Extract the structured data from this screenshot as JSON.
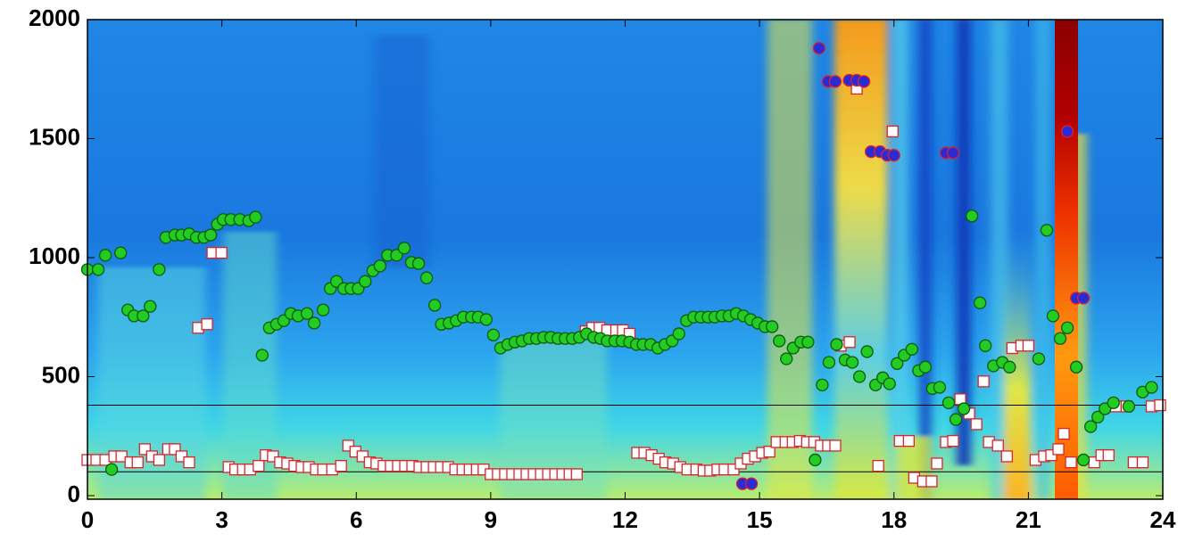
{
  "chart_data": {
    "type": "scatter",
    "xlim": [
      0,
      24
    ],
    "xticks": [
      0,
      3,
      6,
      9,
      12,
      15,
      18,
      21,
      24
    ],
    "ylim": [
      -15,
      2000
    ],
    "yticks": [
      0,
      500,
      1000,
      1500,
      2000
    ],
    "hlines": [
      380,
      100
    ],
    "series": [
      {
        "marker": "square",
        "color": "#ffffff",
        "edgecolor": "#e0202a",
        "x": [
          0,
          0.2,
          0.4,
          0.6,
          0.76,
          0.96,
          1.12,
          1.28,
          1.44,
          1.6,
          1.8,
          1.95,
          2.1,
          2.27,
          2.47,
          2.67,
          2.79,
          2.99,
          3.15,
          3.3,
          3.47,
          3.63,
          3.82,
          3.98,
          4.14,
          4.3,
          4.46,
          4.62,
          4.78,
          4.94,
          5.1,
          5.26,
          5.46,
          5.66,
          5.82,
          5.98,
          6.14,
          6.3,
          6.45,
          6.61,
          6.77,
          6.93,
          7.09,
          7.25,
          7.41,
          7.57,
          7.73,
          7.89,
          8.05,
          8.21,
          8.37,
          8.53,
          8.69,
          8.84,
          9.0,
          9.16,
          9.32,
          9.48,
          9.64,
          9.8,
          9.96,
          10.12,
          10.28,
          10.44,
          10.6,
          10.76,
          10.92,
          11.12,
          11.27,
          11.43,
          11.6,
          11.8,
          11.95,
          12.1,
          12.27,
          12.43,
          12.59,
          12.75,
          12.9,
          13.07,
          13.23,
          13.39,
          13.59,
          13.75,
          13.9,
          14.06,
          14.22,
          14.42,
          14.58,
          14.74,
          14.9,
          15.06,
          15.22,
          15.38,
          15.58,
          15.74,
          15.9,
          16.06,
          16.22,
          16.37,
          16.53,
          16.69,
          16.81,
          17.01,
          17.17,
          17.65,
          17.97,
          18.13,
          18.33,
          18.45,
          18.65,
          18.84,
          18.96,
          19.16,
          19.32,
          19.48,
          19.68,
          19.84,
          20.0,
          20.12,
          20.32,
          20.52,
          20.64,
          20.84,
          21.0,
          21.16,
          21.35,
          21.51,
          21.67,
          21.79,
          21.95,
          22.47,
          22.63,
          22.79,
          22.95,
          23.19,
          23.35,
          23.55,
          23.75,
          23.94
        ],
        "values": [
          150,
          150,
          150,
          165,
          165,
          140,
          140,
          195,
          165,
          150,
          195,
          195,
          165,
          140,
          705,
          720,
          1020,
          1020,
          120,
          110,
          110,
          110,
          125,
          170,
          165,
          140,
          135,
          125,
          120,
          120,
          110,
          110,
          110,
          125,
          210,
          185,
          165,
          140,
          135,
          125,
          125,
          125,
          125,
          125,
          120,
          120,
          120,
          120,
          120,
          110,
          110,
          110,
          110,
          110,
          90,
          90,
          90,
          90,
          90,
          90,
          90,
          90,
          90,
          90,
          90,
          90,
          90,
          690,
          705,
          705,
          695,
          695,
          695,
          680,
          180,
          180,
          170,
          155,
          140,
          135,
          120,
          110,
          110,
          105,
          105,
          110,
          110,
          110,
          135,
          155,
          165,
          180,
          185,
          225,
          225,
          225,
          230,
          225,
          225,
          210,
          210,
          210,
          630,
          645,
          1710,
          125,
          1530,
          230,
          230,
          75,
          60,
          60,
          135,
          225,
          230,
          405,
          345,
          300,
          480,
          225,
          210,
          165,
          620,
          630,
          630,
          150,
          165,
          170,
          195,
          260,
          140,
          140,
          170,
          170,
          375,
          375,
          140,
          140,
          375,
          380
        ]
      },
      {
        "marker": "circle",
        "color": "#22cc22",
        "edgecolor": "#0a5a0a",
        "x": [
          0.0,
          0.24,
          0.4,
          0.54,
          0.74,
          0.9,
          1.04,
          1.24,
          1.4,
          1.6,
          1.75,
          1.95,
          2.1,
          2.27,
          2.43,
          2.6,
          2.75,
          2.9,
          3.03,
          3.2,
          3.4,
          3.6,
          3.75,
          3.9,
          4.06,
          4.22,
          4.38,
          4.54,
          4.7,
          4.9,
          5.06,
          5.26,
          5.42,
          5.56,
          5.72,
          5.88,
          6.04,
          6.2,
          6.37,
          6.53,
          6.7,
          6.9,
          7.07,
          7.23,
          7.39,
          7.57,
          7.75,
          7.9,
          8.07,
          8.23,
          8.39,
          8.57,
          8.72,
          8.9,
          9.06,
          9.22,
          9.38,
          9.54,
          9.7,
          9.86,
          10.02,
          10.18,
          10.34,
          10.5,
          10.66,
          10.82,
          10.98,
          11.14,
          11.3,
          11.45,
          11.6,
          11.77,
          11.93,
          12.1,
          12.25,
          12.4,
          12.57,
          12.73,
          12.89,
          13.05,
          13.2,
          13.37,
          13.53,
          13.69,
          13.85,
          14.0,
          14.16,
          14.32,
          14.48,
          14.64,
          14.8,
          14.96,
          15.12,
          15.28,
          15.44,
          15.6,
          15.75,
          15.92,
          16.08,
          16.24,
          16.4,
          16.55,
          16.72,
          16.91,
          17.07,
          17.23,
          17.4,
          17.59,
          17.75,
          17.9,
          18.07,
          18.23,
          18.4,
          18.55,
          18.7,
          18.86,
          19.02,
          19.22,
          19.38,
          19.56,
          19.74,
          19.92,
          20.04,
          20.22,
          20.42,
          20.58,
          21.23,
          21.41,
          21.55,
          21.71,
          21.87,
          22.07,
          22.23,
          22.39,
          22.55,
          22.71,
          22.9,
          23.24,
          23.55,
          23.75
        ],
        "values": [
          950,
          950,
          1010,
          110,
          1020,
          780,
          755,
          755,
          795,
          950,
          1085,
          1095,
          1095,
          1100,
          1085,
          1085,
          1095,
          1140,
          1160,
          1160,
          1160,
          1155,
          1170,
          590,
          705,
          720,
          735,
          765,
          755,
          765,
          725,
          780,
          870,
          900,
          870,
          870,
          870,
          900,
          945,
          965,
          1010,
          1010,
          1040,
          980,
          975,
          915,
          800,
          720,
          725,
          735,
          750,
          750,
          750,
          740,
          675,
          620,
          635,
          645,
          650,
          660,
          660,
          665,
          665,
          660,
          660,
          660,
          665,
          680,
          665,
          660,
          650,
          650,
          650,
          645,
          635,
          635,
          635,
          620,
          635,
          650,
          680,
          735,
          750,
          750,
          750,
          750,
          755,
          755,
          765,
          755,
          740,
          725,
          710,
          710,
          650,
          575,
          620,
          645,
          645,
          150,
          465,
          560,
          635,
          570,
          560,
          500,
          605,
          465,
          495,
          470,
          555,
          590,
          615,
          525,
          540,
          450,
          455,
          390,
          320,
          365,
          1175,
          810,
          630,
          545,
          560,
          540,
          575,
          1115,
          755,
          660,
          705,
          540,
          150,
          290,
          330,
          365,
          390,
          375,
          435,
          455
        ]
      },
      {
        "marker": "circle",
        "color": "#2b2bd6",
        "edgecolor": "#e0202a",
        "x": [
          14.62,
          14.82,
          16.33,
          16.53,
          16.69,
          17.0,
          17.17,
          17.33,
          17.49,
          17.69,
          17.85,
          18.0,
          19.16,
          19.32,
          21.87,
          22.07,
          22.23
        ],
        "values": [
          50,
          50,
          1880,
          1740,
          1740,
          1745,
          1745,
          1740,
          1445,
          1445,
          1430,
          1430,
          1440,
          1440,
          1530,
          830,
          830
        ]
      }
    ]
  }
}
